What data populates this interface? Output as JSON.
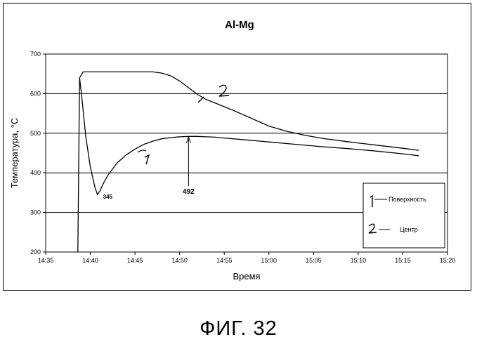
{
  "chart_data": {
    "type": "line",
    "title": "Al-Mg",
    "xlabel": "Время",
    "ylabel": "Температура, °C",
    "x_tick_labels": [
      "14:35",
      "14:40",
      "14:45",
      "14:50",
      "14:55",
      "15:00",
      "15:05",
      "15:10",
      "15:15",
      "15:20"
    ],
    "xlim_minutes": [
      0,
      45
    ],
    "y_tick_labels": [
      "200",
      "300",
      "400",
      "500",
      "600",
      "700"
    ],
    "ylim": [
      200,
      700
    ],
    "grid": "horizontal",
    "series": [
      {
        "name": "Поверхность",
        "marker_label": "1",
        "x_minutes": [
          3.6,
          3.8,
          4.1,
          4.5,
          5.0,
          5.5,
          5.8,
          6.1,
          6.5,
          7.0,
          7.5,
          8.0,
          9.0,
          10.0,
          11.0,
          12.0,
          13.0,
          14.0,
          15.0,
          16.0,
          17.0,
          18.0,
          19.0,
          20.0,
          22.0,
          25.0,
          28.0,
          31.0,
          34.0,
          37.0,
          40.0,
          41.8
        ],
        "values": [
          200,
          640,
          580,
          490,
          415,
          365,
          345,
          355,
          375,
          395,
          410,
          425,
          445,
          460,
          472,
          480,
          486,
          489,
          491,
          492,
          492,
          491,
          490,
          488,
          484,
          478,
          472,
          466,
          461,
          455,
          448,
          443
        ]
      },
      {
        "name": "Центр",
        "marker_label": "2",
        "x_minutes": [
          3.8,
          4.2,
          5.0,
          7.0,
          10.0,
          12.0,
          13.0,
          14.0,
          15.0,
          16.0,
          17.0,
          18.0,
          19.0,
          20.0,
          21.0,
          22.0,
          23.0,
          24.0,
          25.0,
          27.0,
          29.0,
          31.0,
          34.0,
          37.0,
          40.0,
          41.8
        ],
        "values": [
          640,
          655,
          655,
          655,
          655,
          655,
          652,
          645,
          632,
          615,
          598,
          585,
          576,
          567,
          558,
          548,
          538,
          528,
          518,
          505,
          495,
          487,
          478,
          470,
          462,
          457
        ]
      }
    ],
    "annotations": [
      {
        "text": "345",
        "x_minutes": 5.8,
        "y": 345
      },
      {
        "text": "492",
        "x_minutes": 16.0,
        "y": 492
      }
    ],
    "legend": {
      "placement": "right",
      "items": [
        "Поверхность",
        "Центр"
      ]
    }
  },
  "caption": "ФИГ. 32"
}
